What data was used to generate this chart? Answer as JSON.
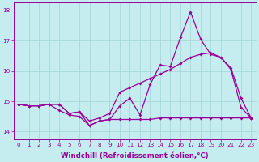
{
  "xlabel": "Windchill (Refroidissement éolien,°C)",
  "xlim": [
    -0.5,
    23.5
  ],
  "ylim": [
    13.75,
    18.25
  ],
  "xticks": [
    0,
    1,
    2,
    3,
    4,
    5,
    6,
    7,
    8,
    9,
    10,
    11,
    12,
    13,
    14,
    15,
    16,
    17,
    18,
    19,
    20,
    21,
    22,
    23
  ],
  "yticks": [
    14,
    15,
    16,
    17,
    18
  ],
  "background_color": "#c5ecee",
  "grid_color": "#a0d4d8",
  "line_color": "#990099",
  "line1_x": [
    0,
    1,
    2,
    3,
    4,
    5,
    6,
    7,
    8,
    9,
    10,
    11,
    12,
    13,
    14,
    15,
    16,
    17,
    18,
    19,
    20,
    21,
    22,
    23
  ],
  "line1_y": [
    14.9,
    14.85,
    14.85,
    14.9,
    14.9,
    14.6,
    14.65,
    14.2,
    14.35,
    14.4,
    14.85,
    15.1,
    14.55,
    15.55,
    16.2,
    16.15,
    17.1,
    17.95,
    17.05,
    16.55,
    16.45,
    16.05,
    14.8,
    14.45
  ],
  "line2_x": [
    0,
    1,
    2,
    3,
    4,
    5,
    6,
    7,
    8,
    9,
    10,
    11,
    12,
    13,
    14,
    15,
    16,
    17,
    18,
    19,
    20,
    21,
    22,
    23
  ],
  "line2_y": [
    14.9,
    14.85,
    14.85,
    14.9,
    14.7,
    14.55,
    14.5,
    14.2,
    14.35,
    14.4,
    14.4,
    14.4,
    14.4,
    14.4,
    14.45,
    14.45,
    14.45,
    14.45,
    14.45,
    14.45,
    14.45,
    14.45,
    14.45,
    14.45
  ],
  "line3_x": [
    0,
    1,
    2,
    3,
    4,
    5,
    6,
    7,
    8,
    9,
    10,
    11,
    12,
    13,
    14,
    15,
    16,
    17,
    18,
    19,
    20,
    21,
    22,
    23
  ],
  "line3_y": [
    14.9,
    14.85,
    14.85,
    14.9,
    14.9,
    14.6,
    14.65,
    14.35,
    14.45,
    14.6,
    15.3,
    15.45,
    15.6,
    15.75,
    15.9,
    16.05,
    16.25,
    16.45,
    16.55,
    16.6,
    16.45,
    16.1,
    15.1,
    14.45
  ],
  "markersize": 2.0,
  "linewidth": 0.9,
  "tick_fontsize": 5.2,
  "xlabel_fontsize": 6.2
}
